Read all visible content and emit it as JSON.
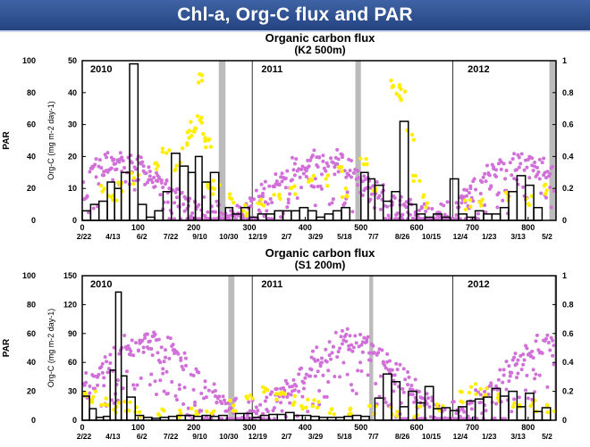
{
  "header": {
    "title": "Chl-a, Org-C flux and PAR"
  },
  "colors": {
    "banner": "#2f4f8f",
    "par": "#d070d8",
    "chl": "#ffee00",
    "bars": "#000000",
    "shade": "#bbbbbb"
  },
  "chart_data": [
    {
      "type": "bar",
      "title": "Organic carbon flux",
      "subtitle": "(K2 500m)",
      "ylabel": "Org-C (mg m-2 day-1)",
      "par_label": "PAR",
      "ylim": [
        0,
        50
      ],
      "yticks": [
        "0",
        "10",
        "20",
        "30",
        "40",
        "50"
      ],
      "par_ticks": [
        "0",
        "20",
        "40",
        "60",
        "80",
        "100"
      ],
      "right_ticks": [
        "0",
        "0.2",
        "0.4",
        "0.6",
        "0.8",
        "1"
      ],
      "xlim": [
        0,
        850
      ],
      "xticks": [
        "0",
        "100",
        "200",
        "300",
        "400",
        "500",
        "600",
        "700",
        "800"
      ],
      "date_labels": [
        "2/22",
        "4/13",
        "6/2",
        "7/22",
        "9/10",
        "10/30",
        "12/19",
        "2/7",
        "3/29",
        "5/18",
        "7/7",
        "8/26",
        "10/15",
        "12/4",
        "1/23",
        "3/13",
        "5/2"
      ],
      "year_labels": [
        {
          "x": 8,
          "label": "2010"
        },
        {
          "x": 315,
          "label": "2011"
        },
        {
          "x": 685,
          "label": "2012"
        }
      ],
      "year_lines": [
        305,
        665
      ],
      "gaps": [
        [
          245,
          257
        ],
        [
          490,
          500
        ],
        [
          838,
          850
        ]
      ],
      "bars": [
        {
          "x0": 0,
          "x1": 15,
          "v": 3
        },
        {
          "x0": 15,
          "x1": 30,
          "v": 5
        },
        {
          "x0": 30,
          "x1": 45,
          "v": 6
        },
        {
          "x0": 45,
          "x1": 58,
          "v": 12
        },
        {
          "x0": 58,
          "x1": 70,
          "v": 10
        },
        {
          "x0": 70,
          "x1": 85,
          "v": 15
        },
        {
          "x0": 85,
          "x1": 100,
          "v": 49
        },
        {
          "x0": 100,
          "x1": 115,
          "v": 5
        },
        {
          "x0": 115,
          "x1": 130,
          "v": 1
        },
        {
          "x0": 130,
          "x1": 145,
          "v": 3
        },
        {
          "x0": 145,
          "x1": 160,
          "v": 9
        },
        {
          "x0": 160,
          "x1": 175,
          "v": 21
        },
        {
          "x0": 175,
          "x1": 190,
          "v": 17
        },
        {
          "x0": 190,
          "x1": 203,
          "v": 15
        },
        {
          "x0": 203,
          "x1": 215,
          "v": 20
        },
        {
          "x0": 215,
          "x1": 230,
          "v": 12
        },
        {
          "x0": 230,
          "x1": 245,
          "v": 15
        },
        {
          "x0": 257,
          "x1": 270,
          "v": 4
        },
        {
          "x0": 270,
          "x1": 285,
          "v": 2
        },
        {
          "x0": 285,
          "x1": 300,
          "v": 4
        },
        {
          "x0": 300,
          "x1": 315,
          "v": 1
        },
        {
          "x0": 315,
          "x1": 330,
          "v": 2
        },
        {
          "x0": 330,
          "x1": 345,
          "v": 2
        },
        {
          "x0": 345,
          "x1": 360,
          "v": 3
        },
        {
          "x0": 360,
          "x1": 375,
          "v": 3
        },
        {
          "x0": 375,
          "x1": 390,
          "v": 3
        },
        {
          "x0": 390,
          "x1": 405,
          "v": 4
        },
        {
          "x0": 405,
          "x1": 420,
          "v": 3
        },
        {
          "x0": 420,
          "x1": 435,
          "v": 1
        },
        {
          "x0": 435,
          "x1": 450,
          "v": 2
        },
        {
          "x0": 450,
          "x1": 465,
          "v": 3
        },
        {
          "x0": 465,
          "x1": 480,
          "v": 4
        },
        {
          "x0": 500,
          "x1": 513,
          "v": 15
        },
        {
          "x0": 513,
          "x1": 525,
          "v": 13
        },
        {
          "x0": 525,
          "x1": 540,
          "v": 11
        },
        {
          "x0": 540,
          "x1": 555,
          "v": 6
        },
        {
          "x0": 555,
          "x1": 570,
          "v": 9
        },
        {
          "x0": 570,
          "x1": 585,
          "v": 31
        },
        {
          "x0": 585,
          "x1": 600,
          "v": 5
        },
        {
          "x0": 600,
          "x1": 615,
          "v": 2
        },
        {
          "x0": 615,
          "x1": 630,
          "v": 1
        },
        {
          "x0": 630,
          "x1": 645,
          "v": 2
        },
        {
          "x0": 645,
          "x1": 660,
          "v": 1
        },
        {
          "x0": 660,
          "x1": 675,
          "v": 13
        },
        {
          "x0": 675,
          "x1": 690,
          "v": 2
        },
        {
          "x0": 690,
          "x1": 705,
          "v": 1
        },
        {
          "x0": 705,
          "x1": 720,
          "v": 3
        },
        {
          "x0": 720,
          "x1": 735,
          "v": 2
        },
        {
          "x0": 735,
          "x1": 750,
          "v": 2
        },
        {
          "x0": 750,
          "x1": 765,
          "v": 4
        },
        {
          "x0": 765,
          "x1": 780,
          "v": 9
        },
        {
          "x0": 780,
          "x1": 795,
          "v": 14
        },
        {
          "x0": 795,
          "x1": 810,
          "v": 11
        },
        {
          "x0": 810,
          "x1": 825,
          "v": 4
        }
      ],
      "par": {
        "min": 0.08,
        "max": 0.42,
        "peak_day": 430,
        "scatter": 0.1
      },
      "chl": [
        [
          40,
          0.18
        ],
        [
          55,
          0.12
        ],
        [
          70,
          0.22
        ],
        [
          95,
          0.26
        ],
        [
          130,
          0.34
        ],
        [
          150,
          0.46
        ],
        [
          170,
          0.33
        ],
        [
          185,
          0.48
        ],
        [
          195,
          0.56
        ],
        [
          200,
          0.58
        ],
        [
          210,
          0.62
        ],
        [
          215,
          0.88
        ],
        [
          220,
          0.53
        ],
        [
          225,
          0.47
        ],
        [
          230,
          0.24
        ],
        [
          240,
          0.19
        ],
        [
          265,
          0.14
        ],
        [
          290,
          0.06
        ],
        [
          320,
          0.1
        ],
        [
          350,
          0.15
        ],
        [
          380,
          0.2
        ],
        [
          410,
          0.28
        ],
        [
          440,
          0.25
        ],
        [
          460,
          0.32
        ],
        [
          470,
          0.18
        ],
        [
          505,
          0.38
        ],
        [
          520,
          0.21
        ],
        [
          560,
          0.84
        ],
        [
          565,
          0.82
        ],
        [
          575,
          0.78
        ],
        [
          590,
          0.54
        ],
        [
          600,
          0.28
        ],
        [
          615,
          0.12
        ],
        [
          690,
          0.09
        ],
        [
          720,
          0.12
        ],
        [
          760,
          0.16
        ],
        [
          800,
          0.12
        ],
        [
          830,
          0.2
        ]
      ]
    },
    {
      "type": "bar",
      "title": "Organic carbon flux",
      "subtitle": "(S1 200m)",
      "ylabel": "Org-C (mg m-2 day-1)",
      "par_label": "PAR",
      "ylim": [
        0,
        150
      ],
      "yticks": [
        "0",
        "30",
        "60",
        "90",
        "120",
        "150"
      ],
      "par_ticks": [
        "0",
        "20",
        "40",
        "60",
        "80",
        "100"
      ],
      "right_ticks": [
        "0",
        "0.2",
        "0.4",
        "0.6",
        "0.8",
        "1"
      ],
      "xlim": [
        0,
        850
      ],
      "xticks": [
        "0",
        "100",
        "200",
        "300",
        "400",
        "500",
        "600",
        "700",
        "800"
      ],
      "date_labels": [
        "2/22",
        "4/13",
        "6/2",
        "7/22",
        "9/10",
        "10/30",
        "12/19",
        "2/7",
        "3/29",
        "5/18",
        "7/7",
        "8/26",
        "10/15",
        "12/4",
        "1/23",
        "3/13",
        "5/2"
      ],
      "year_labels": [
        {
          "x": 8,
          "label": "2010"
        },
        {
          "x": 315,
          "label": "2011"
        },
        {
          "x": 685,
          "label": "2012"
        }
      ],
      "year_lines": [
        305,
        665
      ],
      "gaps": [
        [
          262,
          273
        ],
        [
          515,
          522
        ],
        [
          847,
          850
        ]
      ],
      "bars": [
        {
          "x0": 0,
          "x1": 13,
          "v": 25
        },
        {
          "x0": 13,
          "x1": 25,
          "v": 12
        },
        {
          "x0": 25,
          "x1": 38,
          "v": 3
        },
        {
          "x0": 38,
          "x1": 50,
          "v": 4
        },
        {
          "x0": 50,
          "x1": 60,
          "v": 52
        },
        {
          "x0": 60,
          "x1": 70,
          "v": 133
        },
        {
          "x0": 70,
          "x1": 80,
          "v": 46
        },
        {
          "x0": 80,
          "x1": 95,
          "v": 24
        },
        {
          "x0": 95,
          "x1": 110,
          "v": 5
        },
        {
          "x0": 110,
          "x1": 125,
          "v": 3
        },
        {
          "x0": 125,
          "x1": 140,
          "v": 2
        },
        {
          "x0": 140,
          "x1": 155,
          "v": 3
        },
        {
          "x0": 155,
          "x1": 170,
          "v": 4
        },
        {
          "x0": 170,
          "x1": 185,
          "v": 5
        },
        {
          "x0": 185,
          "x1": 200,
          "v": 5
        },
        {
          "x0": 200,
          "x1": 215,
          "v": 4
        },
        {
          "x0": 215,
          "x1": 230,
          "v": 5
        },
        {
          "x0": 230,
          "x1": 245,
          "v": 4
        },
        {
          "x0": 245,
          "x1": 260,
          "v": 5
        },
        {
          "x0": 275,
          "x1": 290,
          "v": 7
        },
        {
          "x0": 290,
          "x1": 305,
          "v": 7
        },
        {
          "x0": 305,
          "x1": 320,
          "v": 3
        },
        {
          "x0": 320,
          "x1": 335,
          "v": 5
        },
        {
          "x0": 335,
          "x1": 350,
          "v": 6
        },
        {
          "x0": 350,
          "x1": 365,
          "v": 6
        },
        {
          "x0": 365,
          "x1": 380,
          "v": 8
        },
        {
          "x0": 380,
          "x1": 395,
          "v": 5
        },
        {
          "x0": 395,
          "x1": 410,
          "v": 5
        },
        {
          "x0": 410,
          "x1": 425,
          "v": 4
        },
        {
          "x0": 425,
          "x1": 440,
          "v": 3
        },
        {
          "x0": 440,
          "x1": 455,
          "v": 3
        },
        {
          "x0": 455,
          "x1": 470,
          "v": 3
        },
        {
          "x0": 470,
          "x1": 485,
          "v": 4
        },
        {
          "x0": 485,
          "x1": 500,
          "v": 5
        },
        {
          "x0": 500,
          "x1": 515,
          "v": 4
        },
        {
          "x0": 525,
          "x1": 540,
          "v": 23
        },
        {
          "x0": 540,
          "x1": 555,
          "v": 48
        },
        {
          "x0": 555,
          "x1": 570,
          "v": 40
        },
        {
          "x0": 570,
          "x1": 585,
          "v": 14
        },
        {
          "x0": 585,
          "x1": 600,
          "v": 30
        },
        {
          "x0": 600,
          "x1": 615,
          "v": 18
        },
        {
          "x0": 615,
          "x1": 630,
          "v": 35
        },
        {
          "x0": 630,
          "x1": 645,
          "v": 12
        },
        {
          "x0": 645,
          "x1": 660,
          "v": 13
        },
        {
          "x0": 660,
          "x1": 675,
          "v": 10
        },
        {
          "x0": 675,
          "x1": 690,
          "v": 14
        },
        {
          "x0": 690,
          "x1": 705,
          "v": 20
        },
        {
          "x0": 705,
          "x1": 720,
          "v": 22
        },
        {
          "x0": 720,
          "x1": 735,
          "v": 24
        },
        {
          "x0": 735,
          "x1": 750,
          "v": 33
        },
        {
          "x0": 750,
          "x1": 765,
          "v": 25
        },
        {
          "x0": 765,
          "x1": 780,
          "v": 30
        },
        {
          "x0": 780,
          "x1": 795,
          "v": 14
        },
        {
          "x0": 795,
          "x1": 810,
          "v": 28
        },
        {
          "x0": 810,
          "x1": 825,
          "v": 9
        },
        {
          "x0": 825,
          "x1": 840,
          "v": 13
        }
      ],
      "par": {
        "min": 0.12,
        "max": 0.62,
        "peak_day": 115,
        "scatter": 0.07
      },
      "chl": [
        [
          5,
          0.2
        ],
        [
          20,
          0.16
        ],
        [
          40,
          0.13
        ],
        [
          60,
          0.09
        ],
        [
          80,
          0.1
        ],
        [
          100,
          0.06
        ],
        [
          140,
          0.05
        ],
        [
          170,
          0.04
        ],
        [
          200,
          0.05
        ],
        [
          230,
          0.06
        ],
        [
          270,
          0.1
        ],
        [
          300,
          0.18
        ],
        [
          330,
          0.2
        ],
        [
          350,
          0.17
        ],
        [
          360,
          0.2
        ],
        [
          380,
          0.14
        ],
        [
          400,
          0.12
        ],
        [
          420,
          0.1
        ],
        [
          450,
          0.08
        ],
        [
          480,
          0.06
        ],
        [
          520,
          0.08
        ],
        [
          560,
          0.05
        ],
        [
          600,
          0.06
        ],
        [
          640,
          0.08
        ],
        [
          680,
          0.16
        ],
        [
          700,
          0.22
        ],
        [
          720,
          0.2
        ],
        [
          750,
          0.17
        ],
        [
          780,
          0.12
        ],
        [
          810,
          0.1
        ],
        [
          840,
          0.09
        ]
      ]
    }
  ]
}
